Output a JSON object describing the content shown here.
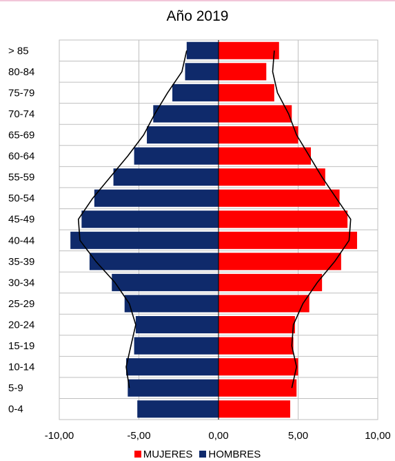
{
  "chart_data": {
    "type": "bar",
    "orientation": "horizontal",
    "stacked": "diverging",
    "title": "Año 2019",
    "xlabel": "",
    "ylabel": "",
    "xlim": [
      -10,
      10
    ],
    "x_ticks": [
      "-10,00",
      "-5,00",
      "0,00",
      "5,00",
      "10,00"
    ],
    "x_tick_values": [
      -10,
      -5,
      0,
      5,
      10
    ],
    "categories": [
      "> 85",
      "80-84",
      "75-79",
      "70-74",
      "65-69",
      "60-64",
      "55-59",
      "50-54",
      "45-49",
      "40-44",
      "35-39",
      "30-34",
      "25-29",
      "20-24",
      "15-19",
      "10-14",
      "5-9",
      "0-4"
    ],
    "series": [
      {
        "name": "MUJERES",
        "color": "#ff0000",
        "values": [
          3.8,
          3.0,
          3.5,
          4.6,
          5.0,
          5.8,
          6.7,
          7.6,
          8.1,
          8.7,
          7.7,
          6.5,
          5.7,
          4.8,
          4.7,
          5.0,
          4.9,
          4.5
        ]
      },
      {
        "name": "HOMBRES",
        "color": "#0f2a6b",
        "values": [
          -2.0,
          -2.1,
          -2.9,
          -4.1,
          -4.5,
          -5.3,
          -6.6,
          -7.8,
          -8.6,
          -9.3,
          -8.1,
          -6.7,
          -5.9,
          -5.2,
          -5.3,
          -5.8,
          -5.7,
          -5.1
        ]
      }
    ],
    "comparison_lines": [
      {
        "side": "HOMBRES",
        "values": [
          -2.0,
          -2.3,
          -3.2,
          -4.0,
          -4.7,
          -5.7,
          -6.8,
          -7.9,
          -8.8,
          -8.7,
          -7.7,
          -6.5,
          -5.6,
          -5.2,
          -5.5,
          -5.8,
          -5.6,
          null
        ]
      },
      {
        "side": "MUJERES",
        "values": [
          3.5,
          3.4,
          3.7,
          4.4,
          4.9,
          5.7,
          6.5,
          7.4,
          8.3,
          8.2,
          7.3,
          6.2,
          5.3,
          4.7,
          4.6,
          4.9,
          4.6,
          null
        ]
      }
    ],
    "grid": true,
    "legend_position": "bottom",
    "colors": {
      "plot_border": "#bfbfbf",
      "gridline": "#bfbfbf",
      "top_accent": "#f2c6d9",
      "axis_line": "#000000",
      "comparison_line": "#000000"
    }
  }
}
